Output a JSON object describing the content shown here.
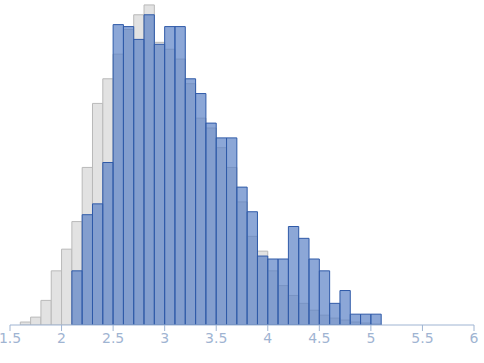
{
  "chart_data": {
    "type": "histogram",
    "bins": [
      1.6,
      1.7,
      1.8,
      1.9,
      2.0,
      2.1,
      2.2,
      2.3,
      2.4,
      2.5,
      2.6,
      2.7,
      2.8,
      2.9,
      3.0,
      3.1,
      3.2,
      3.3,
      3.4,
      3.5,
      3.6,
      3.7,
      3.8,
      3.9,
      4.0,
      4.1,
      4.2,
      4.3,
      4.4,
      4.5,
      4.6,
      4.7,
      4.8,
      4.9,
      5.0,
      5.1
    ],
    "series": [
      {
        "color": "#e2e2e2",
        "values": [
          3,
          8,
          25,
          55,
          77,
          105,
          160,
          225,
          250,
          275,
          300,
          315,
          325,
          287,
          280,
          270,
          245,
          210,
          200,
          180,
          160,
          125,
          90,
          75,
          55,
          40,
          30,
          22,
          15,
          10,
          7,
          5,
          3,
          2,
          1
        ]
      },
      {
        "color": "#5b82c6",
        "values": [
          0,
          0,
          0,
          0,
          0,
          55,
          112,
          123,
          165,
          305,
          303,
          290,
          315,
          285,
          303,
          303,
          250,
          235,
          205,
          190,
          190,
          140,
          115,
          70,
          67,
          67,
          100,
          88,
          67,
          55,
          22,
          35,
          11,
          11,
          11
        ]
      }
    ],
    "xlim": [
      1.5,
      6
    ],
    "xticks": [
      1.5,
      2,
      2.5,
      3,
      3.5,
      4,
      4.5,
      5,
      5.5,
      6
    ],
    "ylim": [
      0,
      330
    ],
    "tick_labels": "x"
  }
}
